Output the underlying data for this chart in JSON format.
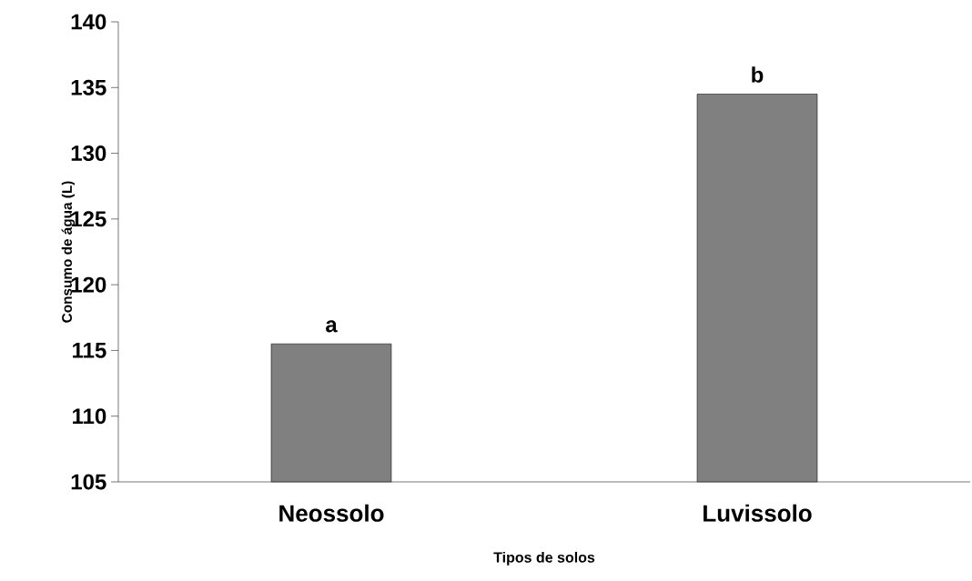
{
  "chart_data": {
    "type": "bar",
    "xlabel": "Tipos de solos",
    "ylabel": "Consumo de água (L)",
    "categories": [
      "Neossolo",
      "Luvissolo"
    ],
    "values": [
      115.5,
      134.5
    ],
    "color": "#808080",
    "ylim": [
      105,
      140
    ],
    "yticks": [
      105,
      110,
      115,
      120,
      125,
      130,
      135,
      140
    ],
    "annotations": [
      "a",
      "b"
    ]
  }
}
